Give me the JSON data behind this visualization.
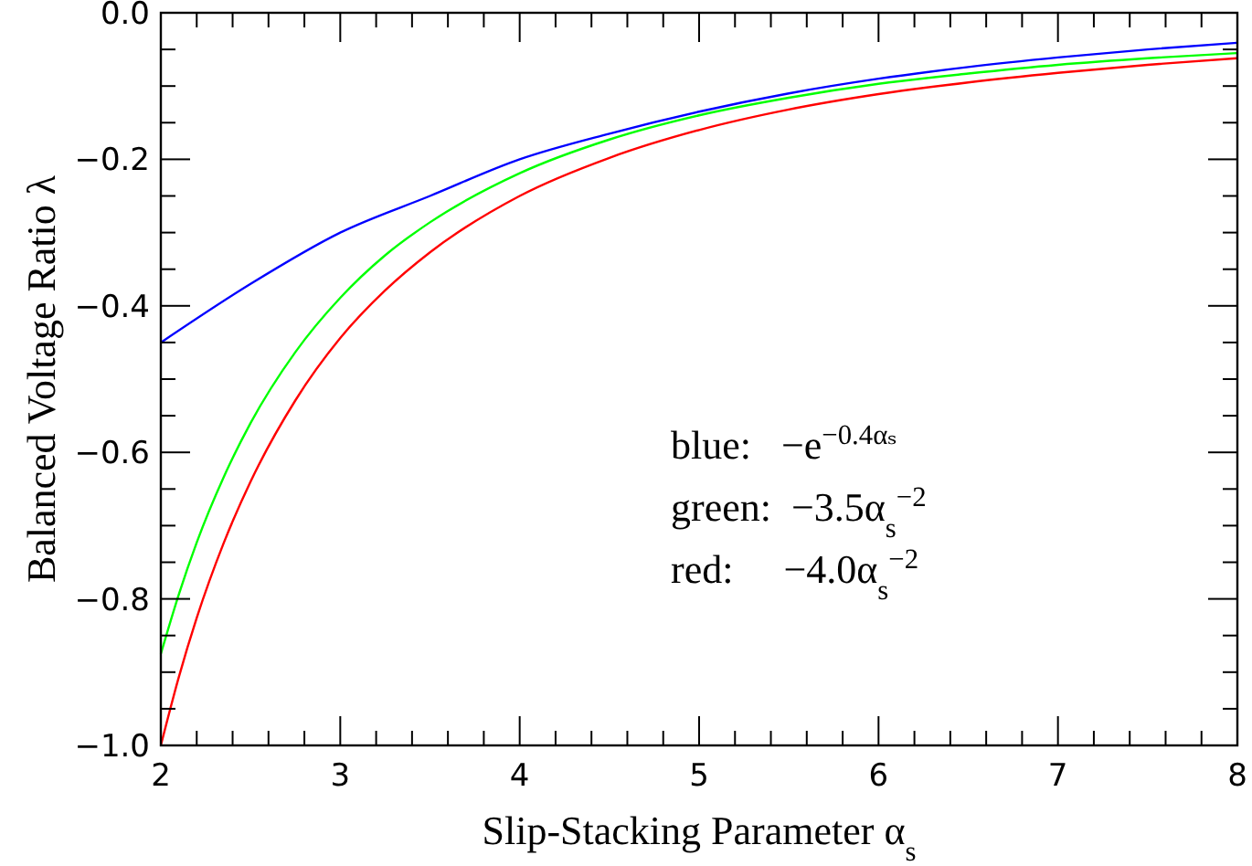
{
  "chart_data": {
    "type": "line",
    "xlabel": "Slip-Stacking Parameter α$_{s}$",
    "ylabel": "Balanced Voltage Ratio λ",
    "xlim": [
      2,
      8
    ],
    "ylim": [
      -1,
      0
    ],
    "xticks": [
      2,
      {
        "value": 2.2,
        "label": null
      },
      {
        "value": 2.4,
        "label": null
      },
      {
        "value": 2.6,
        "label": null
      },
      {
        "value": 2.8,
        "label": null
      },
      3,
      {
        "value": 3.2,
        "label": null
      },
      {
        "value": 3.4,
        "label": null
      },
      {
        "value": 3.6,
        "label": null
      },
      {
        "value": 3.8,
        "label": null
      },
      4,
      {
        "value": 4.2,
        "label": null
      },
      {
        "value": 4.4,
        "label": null
      },
      {
        "value": 4.6,
        "label": null
      },
      {
        "value": 4.8,
        "label": null
      },
      5,
      {
        "value": 5.2,
        "label": null
      },
      {
        "value": 5.4,
        "label": null
      },
      {
        "value": 5.6,
        "label": null
      },
      {
        "value": 5.8,
        "label": null
      },
      6,
      {
        "value": 6.2,
        "label": null
      },
      {
        "value": 6.4,
        "label": null
      },
      {
        "value": 6.6,
        "label": null
      },
      {
        "value": 6.8,
        "label": null
      },
      7,
      {
        "value": 7.2,
        "label": null
      },
      {
        "value": 7.4,
        "label": null
      },
      {
        "value": 7.6,
        "label": null
      },
      {
        "value": 7.8,
        "label": null
      },
      8
    ],
    "yticks": [
      {
        "value": -1,
        "label": "−1.0"
      },
      {
        "value": -0.95,
        "label": null
      },
      {
        "value": -0.9,
        "label": null
      },
      {
        "value": -0.85,
        "label": null
      },
      {
        "value": -0.8,
        "label": "−0.8"
      },
      {
        "value": -0.75,
        "label": null
      },
      {
        "value": -0.7,
        "label": null
      },
      {
        "value": -0.65,
        "label": null
      },
      {
        "value": -0.6,
        "label": "−0.6"
      },
      {
        "value": -0.55,
        "label": null
      },
      {
        "value": -0.5,
        "label": null
      },
      {
        "value": -0.45,
        "label": null
      },
      {
        "value": -0.4,
        "label": "−0.4"
      },
      {
        "value": -0.35,
        "label": null
      },
      {
        "value": -0.3,
        "label": null
      },
      {
        "value": -0.25,
        "label": null
      },
      {
        "value": -0.2,
        "label": "−0.2"
      },
      {
        "value": -0.15,
        "label": null
      },
      {
        "value": -0.1,
        "label": null
      },
      {
        "value": -0.05,
        "label": null
      },
      {
        "value": 0,
        "label": "0.0"
      }
    ],
    "grid": false,
    "marker": "none",
    "line_style": "solid",
    "series": [
      {
        "color": "#0000ff",
        "x": [
          2,
          2.5,
          3,
          3.5,
          4,
          4.5,
          5,
          5.5,
          6,
          6.5,
          7,
          7.5,
          8
        ],
        "values": [
          -0.45,
          -0.37,
          -0.3,
          -0.25,
          -0.2,
          -0.165,
          -0.135,
          -0.11,
          -0.09,
          -0.074,
          -0.061,
          -0.05,
          -0.041
        ]
      },
      {
        "color": "#00ff00",
        "x": [
          2,
          2.1,
          2.2,
          2.35,
          2.5,
          2.75,
          3,
          3.25,
          3.5,
          4,
          4.5,
          5,
          5.5,
          6,
          6.5,
          7,
          7.5,
          8
        ],
        "values": [
          -0.875,
          -0.794,
          -0.723,
          -0.634,
          -0.56,
          -0.463,
          -0.389,
          -0.331,
          -0.286,
          -0.219,
          -0.173,
          -0.14,
          -0.116,
          -0.097,
          -0.083,
          -0.071,
          -0.062,
          -0.055
        ]
      },
      {
        "color": "#ff0000",
        "x": [
          2,
          2.1,
          2.2,
          2.35,
          2.5,
          2.75,
          3,
          3.25,
          3.5,
          4,
          4.5,
          5,
          5.5,
          6,
          6.5,
          7,
          7.5,
          8
        ],
        "values": [
          -1.0,
          -0.907,
          -0.826,
          -0.724,
          -0.64,
          -0.529,
          -0.444,
          -0.379,
          -0.327,
          -0.25,
          -0.198,
          -0.16,
          -0.132,
          -0.111,
          -0.095,
          -0.082,
          -0.071,
          -0.062
        ]
      }
    ],
    "annotations": [
      "blue:   −e$^{−0.4αₛ}$",
      "green:  −3.5α$_{s}$$^{−2}$",
      "red:     −4.0α$_{s}$$^{−2}$"
    ]
  }
}
